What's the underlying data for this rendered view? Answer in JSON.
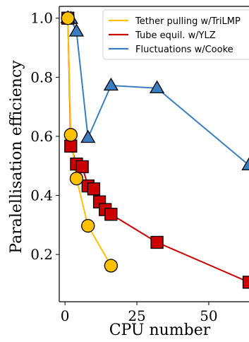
{
  "chart_data": {
    "type": "line",
    "xlabel": "CPU number",
    "ylabel": "Paralellisation efficiency",
    "xlim": [
      -2,
      64
    ],
    "ylim": [
      0.04,
      1.04
    ],
    "xticks": [
      0,
      25,
      50
    ],
    "yticks": [
      0.2,
      0.4,
      0.6,
      0.8,
      1.0
    ],
    "xtick_labels": [
      "0",
      "25",
      "50"
    ],
    "ytick_labels": [
      "0.2",
      "0.4",
      "0.6",
      "0.8",
      "1.0"
    ],
    "grid": false,
    "legend_position": "top-right",
    "series": [
      {
        "name": "Tether pulling w/TriLMP",
        "line_color": "#FFC000",
        "marker": "circle",
        "marker_fill": "#FFC000",
        "marker_edge": "#000000",
        "x": [
          1,
          2,
          4,
          8,
          16
        ],
        "y": [
          1.0,
          0.605,
          0.457,
          0.297,
          0.162
        ]
      },
      {
        "name": "Tube equil. w/YLZ",
        "line_color": "#CC0000",
        "marker": "square",
        "marker_fill": "#CC0000",
        "marker_edge": "#000000",
        "x": [
          1,
          2,
          4,
          6,
          8,
          10,
          12,
          14,
          16,
          32,
          64
        ],
        "y": [
          1.0,
          0.567,
          0.506,
          0.497,
          0.432,
          0.422,
          0.378,
          0.352,
          0.336,
          0.241,
          0.106
        ]
      },
      {
        "name": "Fluctuations w/Cooke",
        "line_color": "#3A7DC0",
        "marker": "triangle",
        "marker_fill": "#3A7DC0",
        "marker_edge": "#000000",
        "x": [
          1,
          2,
          4,
          8,
          16,
          32,
          64
        ],
        "y": [
          1.0,
          0.998,
          0.955,
          0.595,
          0.772,
          0.763,
          0.502
        ]
      }
    ]
  }
}
